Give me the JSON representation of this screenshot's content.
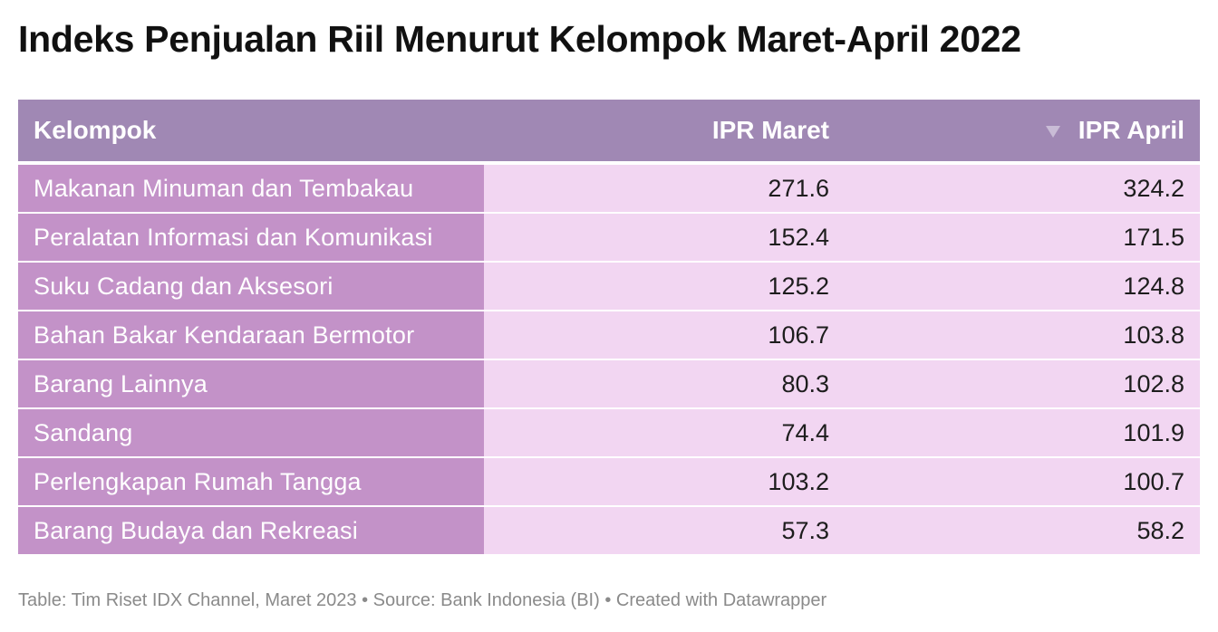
{
  "title": "Indeks Penjualan Riil Menurut Kelompok Maret-April 2022",
  "footer": "Table: Tim Riset IDX Channel, Maret 2023 • Source: Bank Indonesia (BI) • Created with Datawrapper",
  "colors": {
    "header_bg": "#a088b4",
    "name_cell_bg": "#c392c8",
    "value_cell_bg": "#f2d6f2"
  },
  "chart_data": {
    "type": "table",
    "title": "Indeks Penjualan Riil Menurut Kelompok Maret-April 2022",
    "columns": [
      "Kelompok",
      "IPR Maret",
      "IPR April"
    ],
    "sorted_by": "IPR April",
    "sort_icon": "sort-descending-icon",
    "rows": [
      {
        "kelompok": "Makanan Minuman dan Tembakau",
        "maret": "271.6",
        "april": "324.2"
      },
      {
        "kelompok": "Peralatan Informasi dan Komunikasi",
        "maret": "152.4",
        "april": "171.5"
      },
      {
        "kelompok": "Suku Cadang dan Aksesori",
        "maret": "125.2",
        "april": "124.8"
      },
      {
        "kelompok": "Bahan Bakar Kendaraan Bermotor",
        "maret": "106.7",
        "april": "103.8"
      },
      {
        "kelompok": "Barang Lainnya",
        "maret": "80.3",
        "april": "102.8"
      },
      {
        "kelompok": "Sandang",
        "maret": "74.4",
        "april": "101.9"
      },
      {
        "kelompok": "Perlengkapan Rumah Tangga",
        "maret": "103.2",
        "april": "100.7"
      },
      {
        "kelompok": "Barang Budaya dan Rekreasi",
        "maret": "57.3",
        "april": "58.2"
      }
    ]
  }
}
